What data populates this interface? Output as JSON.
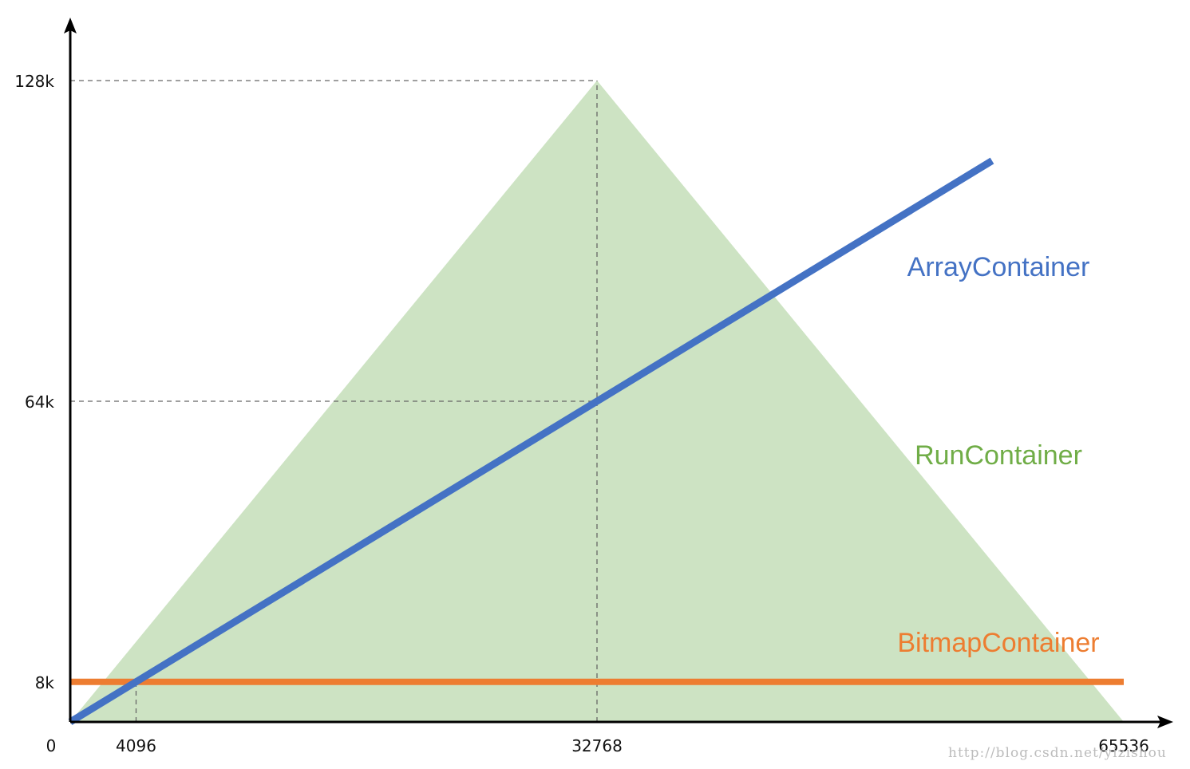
{
  "chart_data": {
    "type": "line",
    "title": "",
    "xlabel": "",
    "ylabel": "",
    "xlim": [
      0,
      65536
    ],
    "ylim": [
      0,
      128
    ],
    "x_ticks": [
      {
        "value": 0,
        "label": "0"
      },
      {
        "value": 4096,
        "label": "4096"
      },
      {
        "value": 32768,
        "label": "32768"
      },
      {
        "value": 65536,
        "label": "65536"
      }
    ],
    "y_ticks": [
      {
        "value": 8,
        "label": "8k"
      },
      {
        "value": 64,
        "label": "64k"
      },
      {
        "value": 128,
        "label": "128k"
      }
    ],
    "reference_lines": [
      {
        "axis": "x",
        "value": 4096,
        "from": 0,
        "to": 8
      },
      {
        "axis": "x",
        "value": 32768,
        "from": 0,
        "to": 128
      },
      {
        "axis": "y",
        "value": 64,
        "from": 0,
        "to": 32768
      },
      {
        "axis": "y",
        "value": 128,
        "from": 0,
        "to": 32768
      }
    ],
    "series": [
      {
        "name": "RunContainer",
        "kind": "area",
        "color": "#cde3c3",
        "label_color": "#70ad47",
        "points": [
          [
            0,
            0
          ],
          [
            32768,
            128
          ],
          [
            65536,
            0
          ]
        ]
      },
      {
        "name": "BitmapContainer",
        "kind": "line",
        "color": "#ed7d31",
        "label_color": "#ed7d31",
        "points": [
          [
            0,
            8
          ],
          [
            65536,
            8
          ]
        ]
      },
      {
        "name": "ArrayContainer",
        "kind": "line",
        "color": "#4472c4",
        "label_color": "#4472c4",
        "points": [
          [
            0,
            0
          ],
          [
            57344,
            112
          ]
        ]
      }
    ],
    "grid": false,
    "legend": "inline"
  },
  "watermark": "http://blog.csdn.net/yizishou"
}
